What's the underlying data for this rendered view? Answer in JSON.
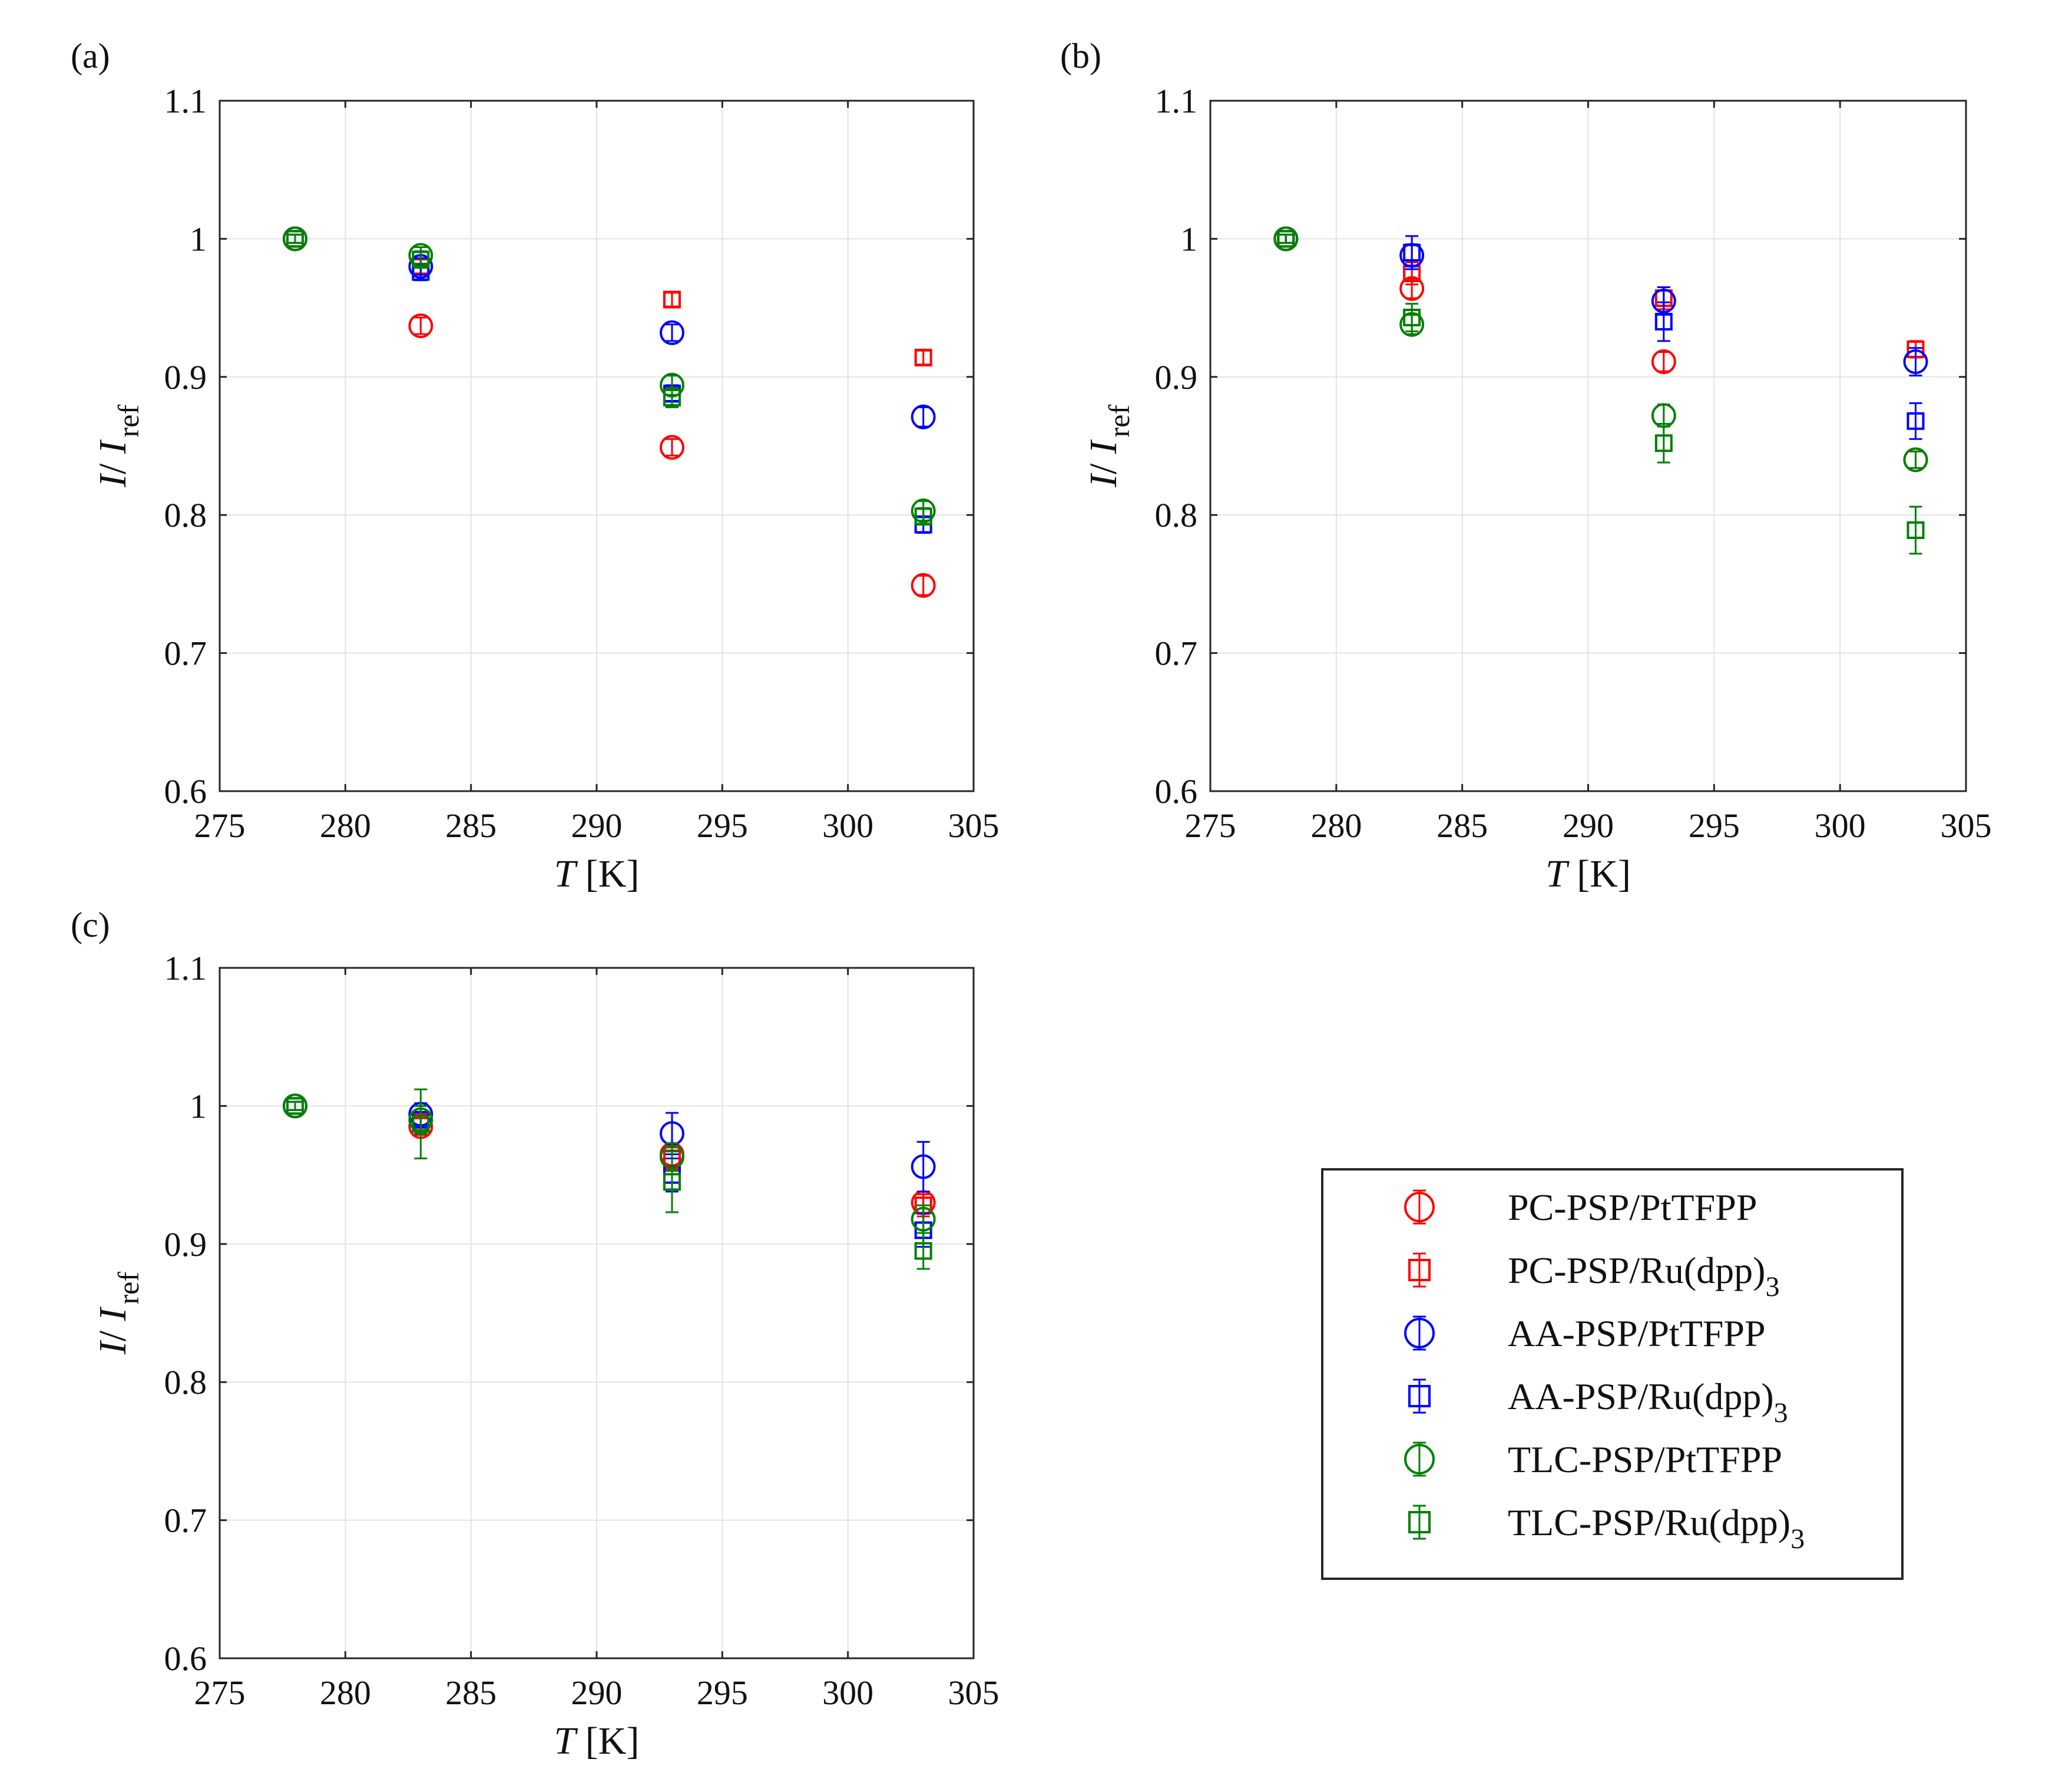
{
  "chart_data": [
    {
      "panel_label": "(a)",
      "type": "scatter",
      "xlabel": {
        "var": "T",
        "unit": " [K]"
      },
      "ylabel": {
        "var": "I",
        "sep": "/ ",
        "base": "I",
        "sub": "ref"
      },
      "xlim": [
        275,
        305
      ],
      "ylim": [
        0.6,
        1.1
      ],
      "xticks": [
        "275",
        "280",
        "285",
        "290",
        "295",
        "300",
        "305"
      ],
      "yticks": [
        "0.6",
        "0.7",
        "0.8",
        "0.9",
        "1",
        "1.1"
      ],
      "grid": true,
      "series": [
        {
          "name": "PC-PSP/PtTFPP",
          "marker": "circle",
          "color": "#ff0000",
          "points": [
            [
              278,
              1.0,
              0.003
            ],
            [
              283,
              0.937,
              0.006
            ],
            [
              293,
              0.849,
              0.006
            ],
            [
              303,
              0.749,
              0.007
            ]
          ]
        },
        {
          "name": "PC-PSP/Ru(dpp)3",
          "marker": "square",
          "color": "#ff0000",
          "points": [
            [
              278,
              1.0,
              0.003
            ],
            [
              283,
              0.98,
              0.005
            ],
            [
              293,
              0.956,
              0.005
            ],
            [
              303,
              0.914,
              0.005
            ]
          ]
        },
        {
          "name": "AA-PSP/PtTFPP",
          "marker": "circle",
          "color": "#0000ff",
          "points": [
            [
              278,
              1.0,
              0.003
            ],
            [
              283,
              0.98,
              0.006
            ],
            [
              293,
              0.932,
              0.006
            ],
            [
              303,
              0.871,
              0.007
            ]
          ]
        },
        {
          "name": "AA-PSP/Ru(dpp)3",
          "marker": "square",
          "color": "#0000ff",
          "points": [
            [
              278,
              1.0,
              0.003
            ],
            [
              283,
              0.976,
              0.006
            ],
            [
              293,
              0.888,
              0.006
            ],
            [
              303,
              0.793,
              0.006
            ]
          ]
        },
        {
          "name": "TLC-PSP/PtTFPP",
          "marker": "circle",
          "color": "#008000",
          "points": [
            [
              278,
              1.0,
              0.003
            ],
            [
              283,
              0.988,
              0.006
            ],
            [
              293,
              0.894,
              0.007
            ],
            [
              303,
              0.803,
              0.007
            ]
          ]
        },
        {
          "name": "TLC-PSP/Ru(dpp)3",
          "marker": "square",
          "color": "#008000",
          "points": [
            [
              278,
              1.0,
              0.003
            ],
            [
              283,
              0.985,
              0.006
            ],
            [
              293,
              0.885,
              0.007
            ],
            [
              303,
              0.799,
              0.006
            ]
          ]
        }
      ]
    },
    {
      "panel_label": "(b)",
      "type": "scatter",
      "xlabel": {
        "var": "T",
        "unit": " [K]"
      },
      "ylabel": {
        "var": "I",
        "sep": "/ ",
        "base": "I",
        "sub": "ref"
      },
      "xlim": [
        275,
        305
      ],
      "ylim": [
        0.6,
        1.1
      ],
      "xticks": [
        "275",
        "280",
        "285",
        "290",
        "295",
        "300",
        "305"
      ],
      "yticks": [
        "0.6",
        "0.7",
        "0.8",
        "0.9",
        "1",
        "1.1"
      ],
      "grid": true,
      "series": [
        {
          "name": "PC-PSP/PtTFPP",
          "marker": "circle",
          "color": "#ff0000",
          "points": [
            [
              278,
              1.0,
              0.003
            ],
            [
              283,
              0.964,
              0.007
            ],
            [
              293,
              0.911,
              0.007
            ],
            [
              303,
              0.84,
              0.006
            ]
          ]
        },
        {
          "name": "PC-PSP/Ru(dpp)3",
          "marker": "square",
          "color": "#ff0000",
          "points": [
            [
              278,
              1.0,
              0.003
            ],
            [
              283,
              0.975,
              0.008
            ],
            [
              293,
              0.957,
              0.008
            ],
            [
              303,
              0.92,
              0.006
            ]
          ]
        },
        {
          "name": "AA-PSP/PtTFPP",
          "marker": "circle",
          "color": "#0000ff",
          "points": [
            [
              278,
              1.0,
              0.003
            ],
            [
              283,
              0.988,
              0.008
            ],
            [
              293,
              0.955,
              0.01
            ],
            [
              303,
              0.911,
              0.01
            ]
          ]
        },
        {
          "name": "AA-PSP/Ru(dpp)3",
          "marker": "square",
          "color": "#0000ff",
          "points": [
            [
              278,
              1.0,
              0.003
            ],
            [
              283,
              0.99,
              0.012
            ],
            [
              293,
              0.94,
              0.014
            ],
            [
              303,
              0.868,
              0.013
            ]
          ]
        },
        {
          "name": "TLC-PSP/PtTFPP",
          "marker": "circle",
          "color": "#008000",
          "points": [
            [
              278,
              1.0,
              0.003
            ],
            [
              283,
              0.938,
              0.007
            ],
            [
              293,
              0.872,
              0.008
            ],
            [
              303,
              0.84,
              0.006
            ]
          ]
        },
        {
          "name": "TLC-PSP/Ru(dpp)3",
          "marker": "square",
          "color": "#008000",
          "points": [
            [
              278,
              1.0,
              0.003
            ],
            [
              283,
              0.943,
              0.01
            ],
            [
              293,
              0.852,
              0.014
            ],
            [
              303,
              0.789,
              0.017
            ]
          ]
        }
      ]
    },
    {
      "panel_label": "(c)",
      "type": "scatter",
      "xlabel": {
        "var": "T",
        "unit": " [K]"
      },
      "ylabel": {
        "var": "I",
        "sep": "/ ",
        "base": "I",
        "sub": "ref"
      },
      "xlim": [
        275,
        305
      ],
      "ylim": [
        0.6,
        1.1
      ],
      "xticks": [
        "275",
        "280",
        "285",
        "290",
        "295",
        "300",
        "305"
      ],
      "yticks": [
        "0.6",
        "0.7",
        "0.8",
        "0.9",
        "1",
        "1.1"
      ],
      "grid": true,
      "series": [
        {
          "name": "PC-PSP/PtTFPP",
          "marker": "circle",
          "color": "#ff0000",
          "points": [
            [
              278,
              1.0,
              0.003
            ],
            [
              283,
              0.985,
              0.006
            ],
            [
              293,
              0.965,
              0.008
            ],
            [
              303,
              0.93,
              0.008
            ]
          ]
        },
        {
          "name": "PC-PSP/Ru(dpp)3",
          "marker": "square",
          "color": "#ff0000",
          "points": [
            [
              278,
              1.0,
              0.003
            ],
            [
              283,
              0.988,
              0.006
            ],
            [
              293,
              0.962,
              0.008
            ],
            [
              303,
              0.928,
              0.008
            ]
          ]
        },
        {
          "name": "AA-PSP/PtTFPP",
          "marker": "circle",
          "color": "#0000ff",
          "points": [
            [
              278,
              1.0,
              0.003
            ],
            [
              283,
              0.994,
              0.008
            ],
            [
              293,
              0.98,
              0.015
            ],
            [
              303,
              0.956,
              0.018
            ]
          ]
        },
        {
          "name": "AA-PSP/Ru(dpp)3",
          "marker": "square",
          "color": "#0000ff",
          "points": [
            [
              278,
              1.0,
              0.003
            ],
            [
              283,
              0.99,
              0.01
            ],
            [
              293,
              0.95,
              0.012
            ],
            [
              303,
              0.91,
              0.012
            ]
          ]
        },
        {
          "name": "TLC-PSP/PtTFPP",
          "marker": "circle",
          "color": "#008000",
          "points": [
            [
              278,
              1.0,
              0.003
            ],
            [
              283,
              0.99,
              0.01
            ],
            [
              293,
              0.963,
              0.01
            ],
            [
              303,
              0.918,
              0.01
            ]
          ]
        },
        {
          "name": "TLC-PSP/Ru(dpp)3",
          "marker": "square",
          "color": "#008000",
          "points": [
            [
              278,
              1.0,
              0.003
            ],
            [
              283,
              0.987,
              0.025
            ],
            [
              293,
              0.945,
              0.022
            ],
            [
              303,
              0.895,
              0.013
            ]
          ]
        }
      ]
    }
  ],
  "legend": {
    "entries": [
      {
        "base": "PC-PSP/PtTFPP",
        "sub": "",
        "marker": "circle",
        "color": "#ff0000"
      },
      {
        "base": "PC-PSP/Ru(dpp)",
        "sub": "3",
        "marker": "square",
        "color": "#ff0000"
      },
      {
        "base": "AA-PSP/PtTFPP",
        "sub": "",
        "marker": "circle",
        "color": "#0000ff"
      },
      {
        "base": "AA-PSP/Ru(dpp)",
        "sub": "3",
        "marker": "square",
        "color": "#0000ff"
      },
      {
        "base": "TLC-PSP/PtTFPP",
        "sub": "",
        "marker": "circle",
        "color": "#008000"
      },
      {
        "base": "TLC-PSP/Ru(dpp)",
        "sub": "3",
        "marker": "square",
        "color": "#008000"
      }
    ]
  }
}
